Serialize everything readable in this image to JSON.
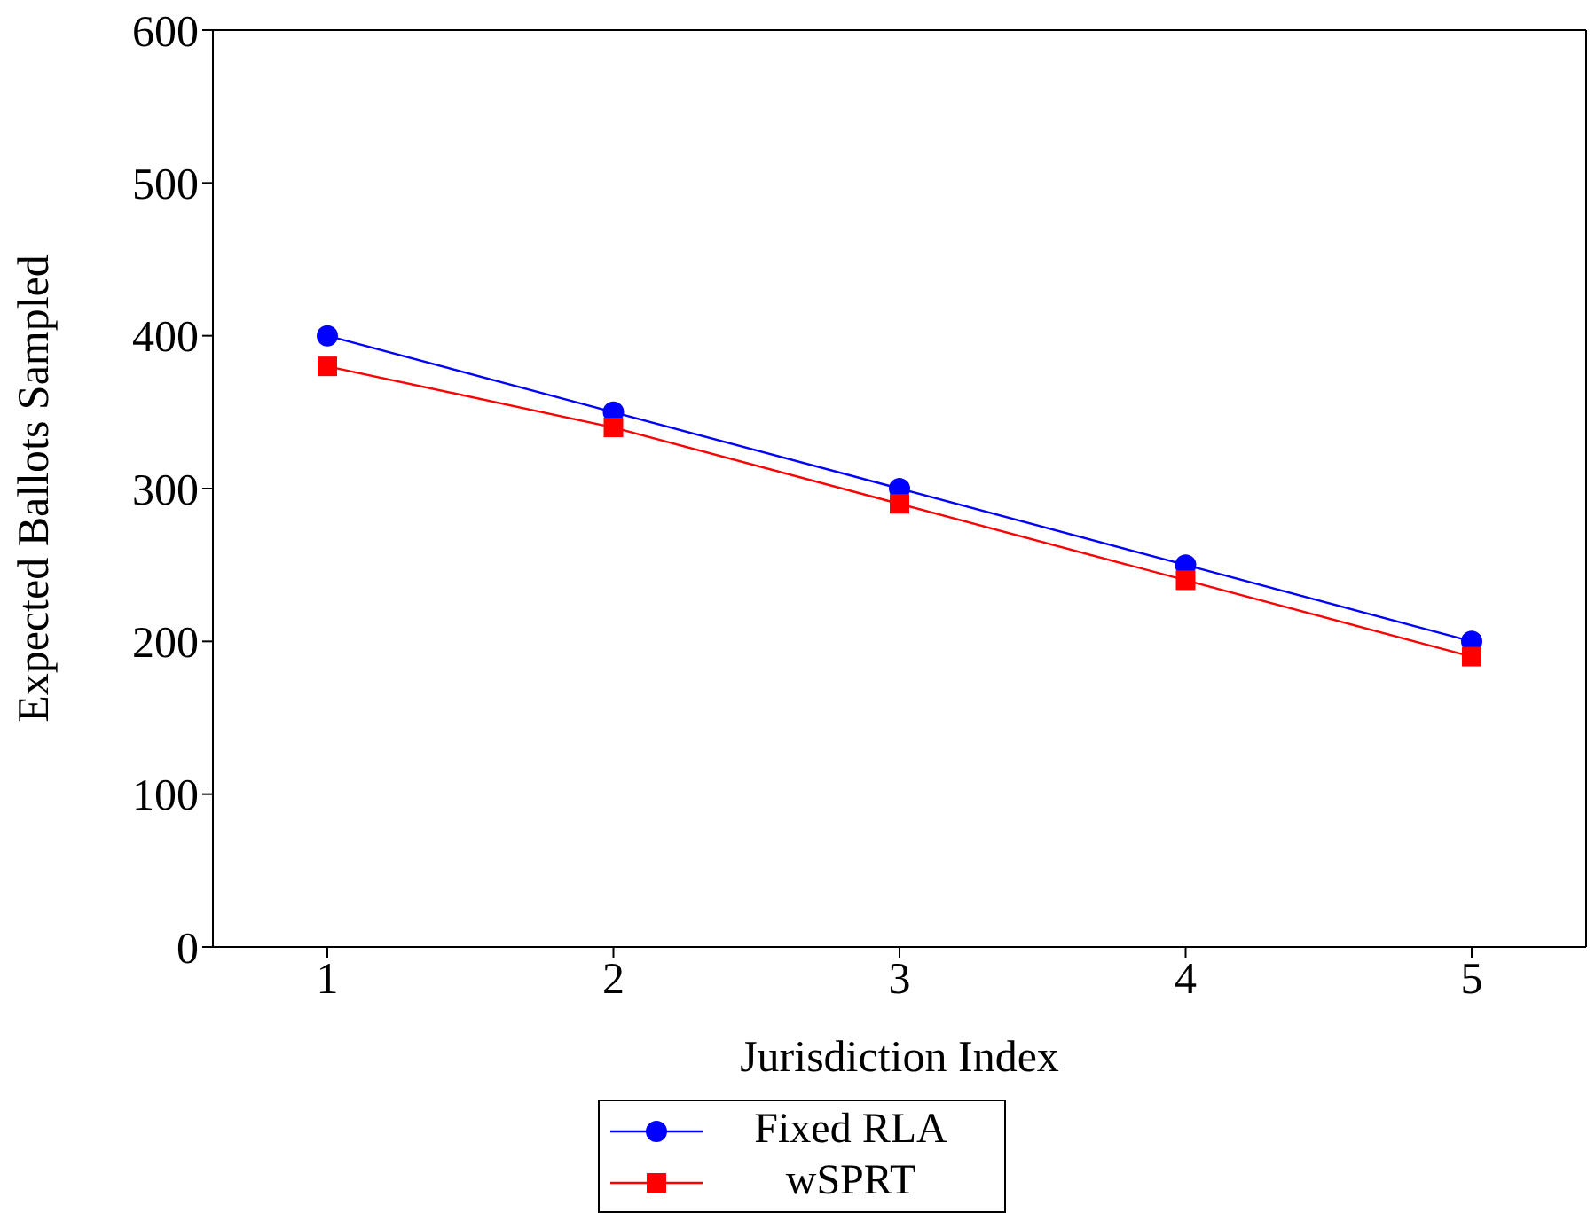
{
  "chart_data": {
    "type": "line",
    "xlabel": "Jurisdiction Index",
    "ylabel": "Expected Ballots Sampled",
    "x": [
      1,
      2,
      3,
      4,
      5
    ],
    "xlim": [
      0.6,
      5.4
    ],
    "xticks": [
      1,
      2,
      3,
      4,
      5
    ],
    "ylim": [
      0,
      600
    ],
    "yticks": [
      0,
      100,
      200,
      300,
      400,
      500,
      600
    ],
    "series": [
      {
        "name": "Fixed RLA",
        "color": "#0000ff",
        "marker": "circle",
        "values": [
          400,
          350,
          300,
          250,
          200
        ]
      },
      {
        "name": "wSPRT",
        "color": "#ff0000",
        "marker": "square",
        "values": [
          380,
          340,
          290,
          240,
          190
        ]
      }
    ],
    "legend": "bottom",
    "grid": false,
    "line_style": "solid"
  }
}
